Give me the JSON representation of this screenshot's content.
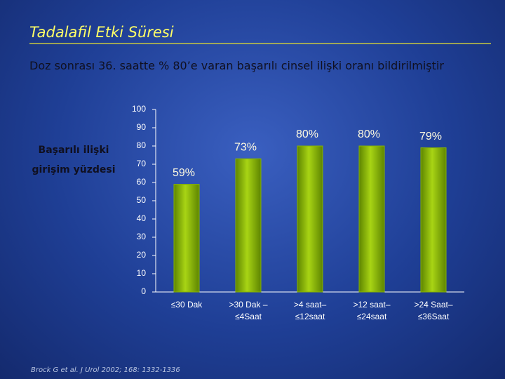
{
  "title": "Tadalafil Etki Süresi",
  "subtitle": "Doz sonrası 36. saatte % 80’e varan başarılı cinsel ilişki oranı bildirilmiştir",
  "source": "Brock G et al. J Urol 2002; 168: 1332-1336",
  "chart_data": {
    "type": "bar",
    "ylabel": "Başarılı ilişki girişim yüzdesi",
    "categories": [
      "≤30 Dak",
      ">30 Dak –\n≤4Saat",
      ">4 saat–\n≤12saat",
      ">12 saat–\n≤24saat",
      ">24 Saat–\n≤36Saat"
    ],
    "values": [
      59,
      73,
      80,
      80,
      79
    ],
    "value_labels": [
      "59%",
      "73%",
      "80%",
      "80%",
      "79%"
    ],
    "color": "#86b300",
    "ylim": [
      0,
      100
    ],
    "yticks": [
      0,
      10,
      20,
      30,
      40,
      50,
      60,
      70,
      80,
      90,
      100
    ],
    "grid": false
  }
}
